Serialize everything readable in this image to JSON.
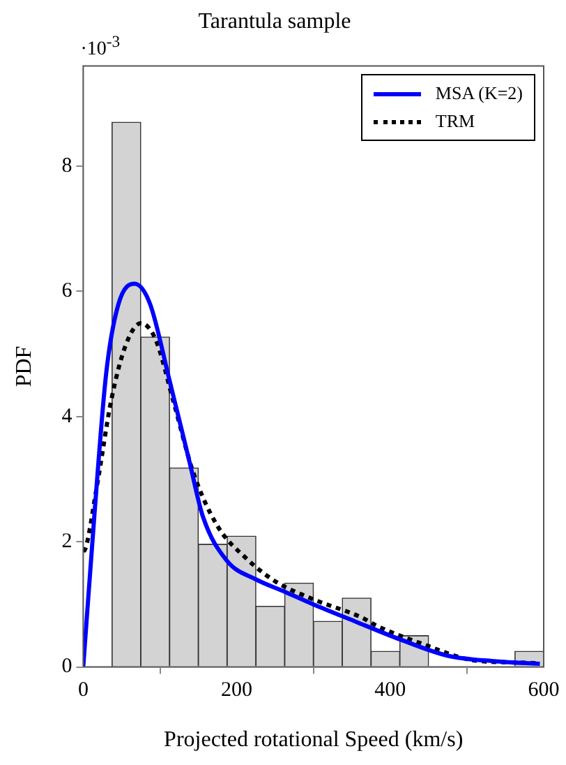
{
  "chart_data": {
    "type": "histogram",
    "title": "Tarantula sample",
    "xlabel": "Projected rotational Speed (km/s)",
    "ylabel": "PDF",
    "annotations": [
      "·10$^{-3}$"
    ],
    "bins": [
      37.5,
      75,
      112.5,
      150,
      187.5,
      225,
      262.5,
      300,
      337.5,
      375,
      412.5,
      450,
      487.5,
      525,
      562.5,
      600
    ],
    "values": [
      8.7,
      5.27,
      3.18,
      1.96,
      2.09,
      0.97,
      1.34,
      0.73,
      1.1,
      0.25,
      0.5,
      0,
      0,
      0,
      0.25
    ],
    "color": "#d3d3d3",
    "xlim": [
      0,
      600
    ],
    "xticks": [
      0,
      200,
      400,
      600
    ],
    "ylim": [
      0,
      9.6
    ],
    "yticks": [
      0,
      2,
      4,
      6,
      8
    ],
    "legend": "top right",
    "series": [
      {
        "name": "MSA (K=2)",
        "type": "line",
        "color": "#0000ff",
        "line_style": "solid",
        "x": [
          0,
          15,
          30,
          46,
          67,
          87,
          112,
          138,
          156,
          187,
          225,
          263,
          300,
          350,
          413,
          475,
          538,
          595
        ],
        "values": [
          0,
          2.5,
          4.7,
          5.8,
          6.12,
          5.8,
          4.6,
          3.3,
          2.4,
          1.7,
          1.4,
          1.2,
          1.0,
          0.75,
          0.44,
          0.18,
          0.09,
          0.05
        ]
      },
      {
        "name": "TRM",
        "type": "line",
        "color": "#000000",
        "line_style": "dotted",
        "x": [
          0,
          2.5,
          18,
          37,
          56,
          75,
          94,
          118,
          143,
          175,
          212,
          250,
          300,
          363,
          382,
          444,
          507,
          570,
          595
        ],
        "values": [
          1.85,
          1.88,
          2.9,
          4.29,
          5.16,
          5.49,
          5.24,
          4.22,
          3.12,
          2.25,
          1.74,
          1.37,
          1.08,
          0.79,
          0.66,
          0.36,
          0.11,
          0.07,
          0.06
        ]
      }
    ]
  }
}
